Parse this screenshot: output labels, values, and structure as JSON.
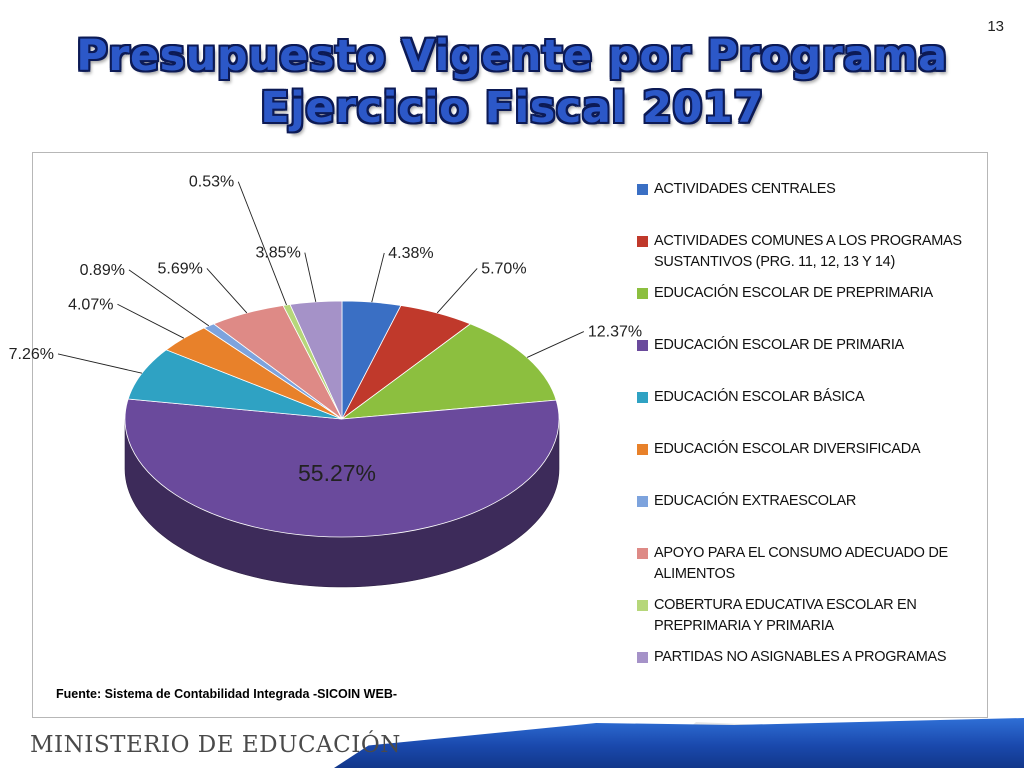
{
  "slide": {
    "page_number": "13",
    "title_line1": "Presupuesto Vigente por Programa",
    "title_line2": "Ejercicio Fiscal 2017",
    "source": "Fuente: Sistema de Contabilidad Integrada -SICOIN WEB-",
    "footer": "MINISTERIO DE EDUCACIÓN"
  },
  "chart_data": {
    "type": "pie",
    "style": "3d",
    "legend_position": "right",
    "title": "",
    "series": [
      {
        "values": [
          4.38,
          5.7,
          12.37,
          55.27,
          7.26,
          4.07,
          0.89,
          5.69,
          0.53,
          3.85
        ],
        "data_labels": [
          "4.38%",
          "5.70%",
          "12.37%",
          "55.27%",
          "7.26%",
          "4.07%",
          "0.89%",
          "5.69%",
          "0.53%",
          "3.85%"
        ]
      }
    ],
    "categories": [
      "ACTIVIDADES CENTRALES",
      "ACTIVIDADES COMUNES A LOS PROGRAMAS SUSTANTIVOS (PRG. 11, 12, 13 Y 14)",
      "EDUCACIÓN ESCOLAR DE PREPRIMARIA",
      "EDUCACIÓN ESCOLAR DE PRIMARIA",
      "EDUCACIÓN ESCOLAR BÁSICA",
      "EDUCACIÓN ESCOLAR DIVERSIFICADA",
      "EDUCACIÓN EXTRAESCOLAR",
      "APOYO PARA EL CONSUMO ADECUADO DE ALIMENTOS",
      "COBERTURA EDUCATIVA ESCOLAR EN PREPRIMARIA Y PRIMARIA",
      "PARTIDAS NO ASIGNABLES A PROGRAMAS"
    ],
    "colors": [
      "#3a6fc4",
      "#c0392b",
      "#8cbf3f",
      "#6a4a9c",
      "#2fa2c3",
      "#e8812a",
      "#7da3dd",
      "#de8a86",
      "#b6d77a",
      "#a592c8"
    ]
  }
}
